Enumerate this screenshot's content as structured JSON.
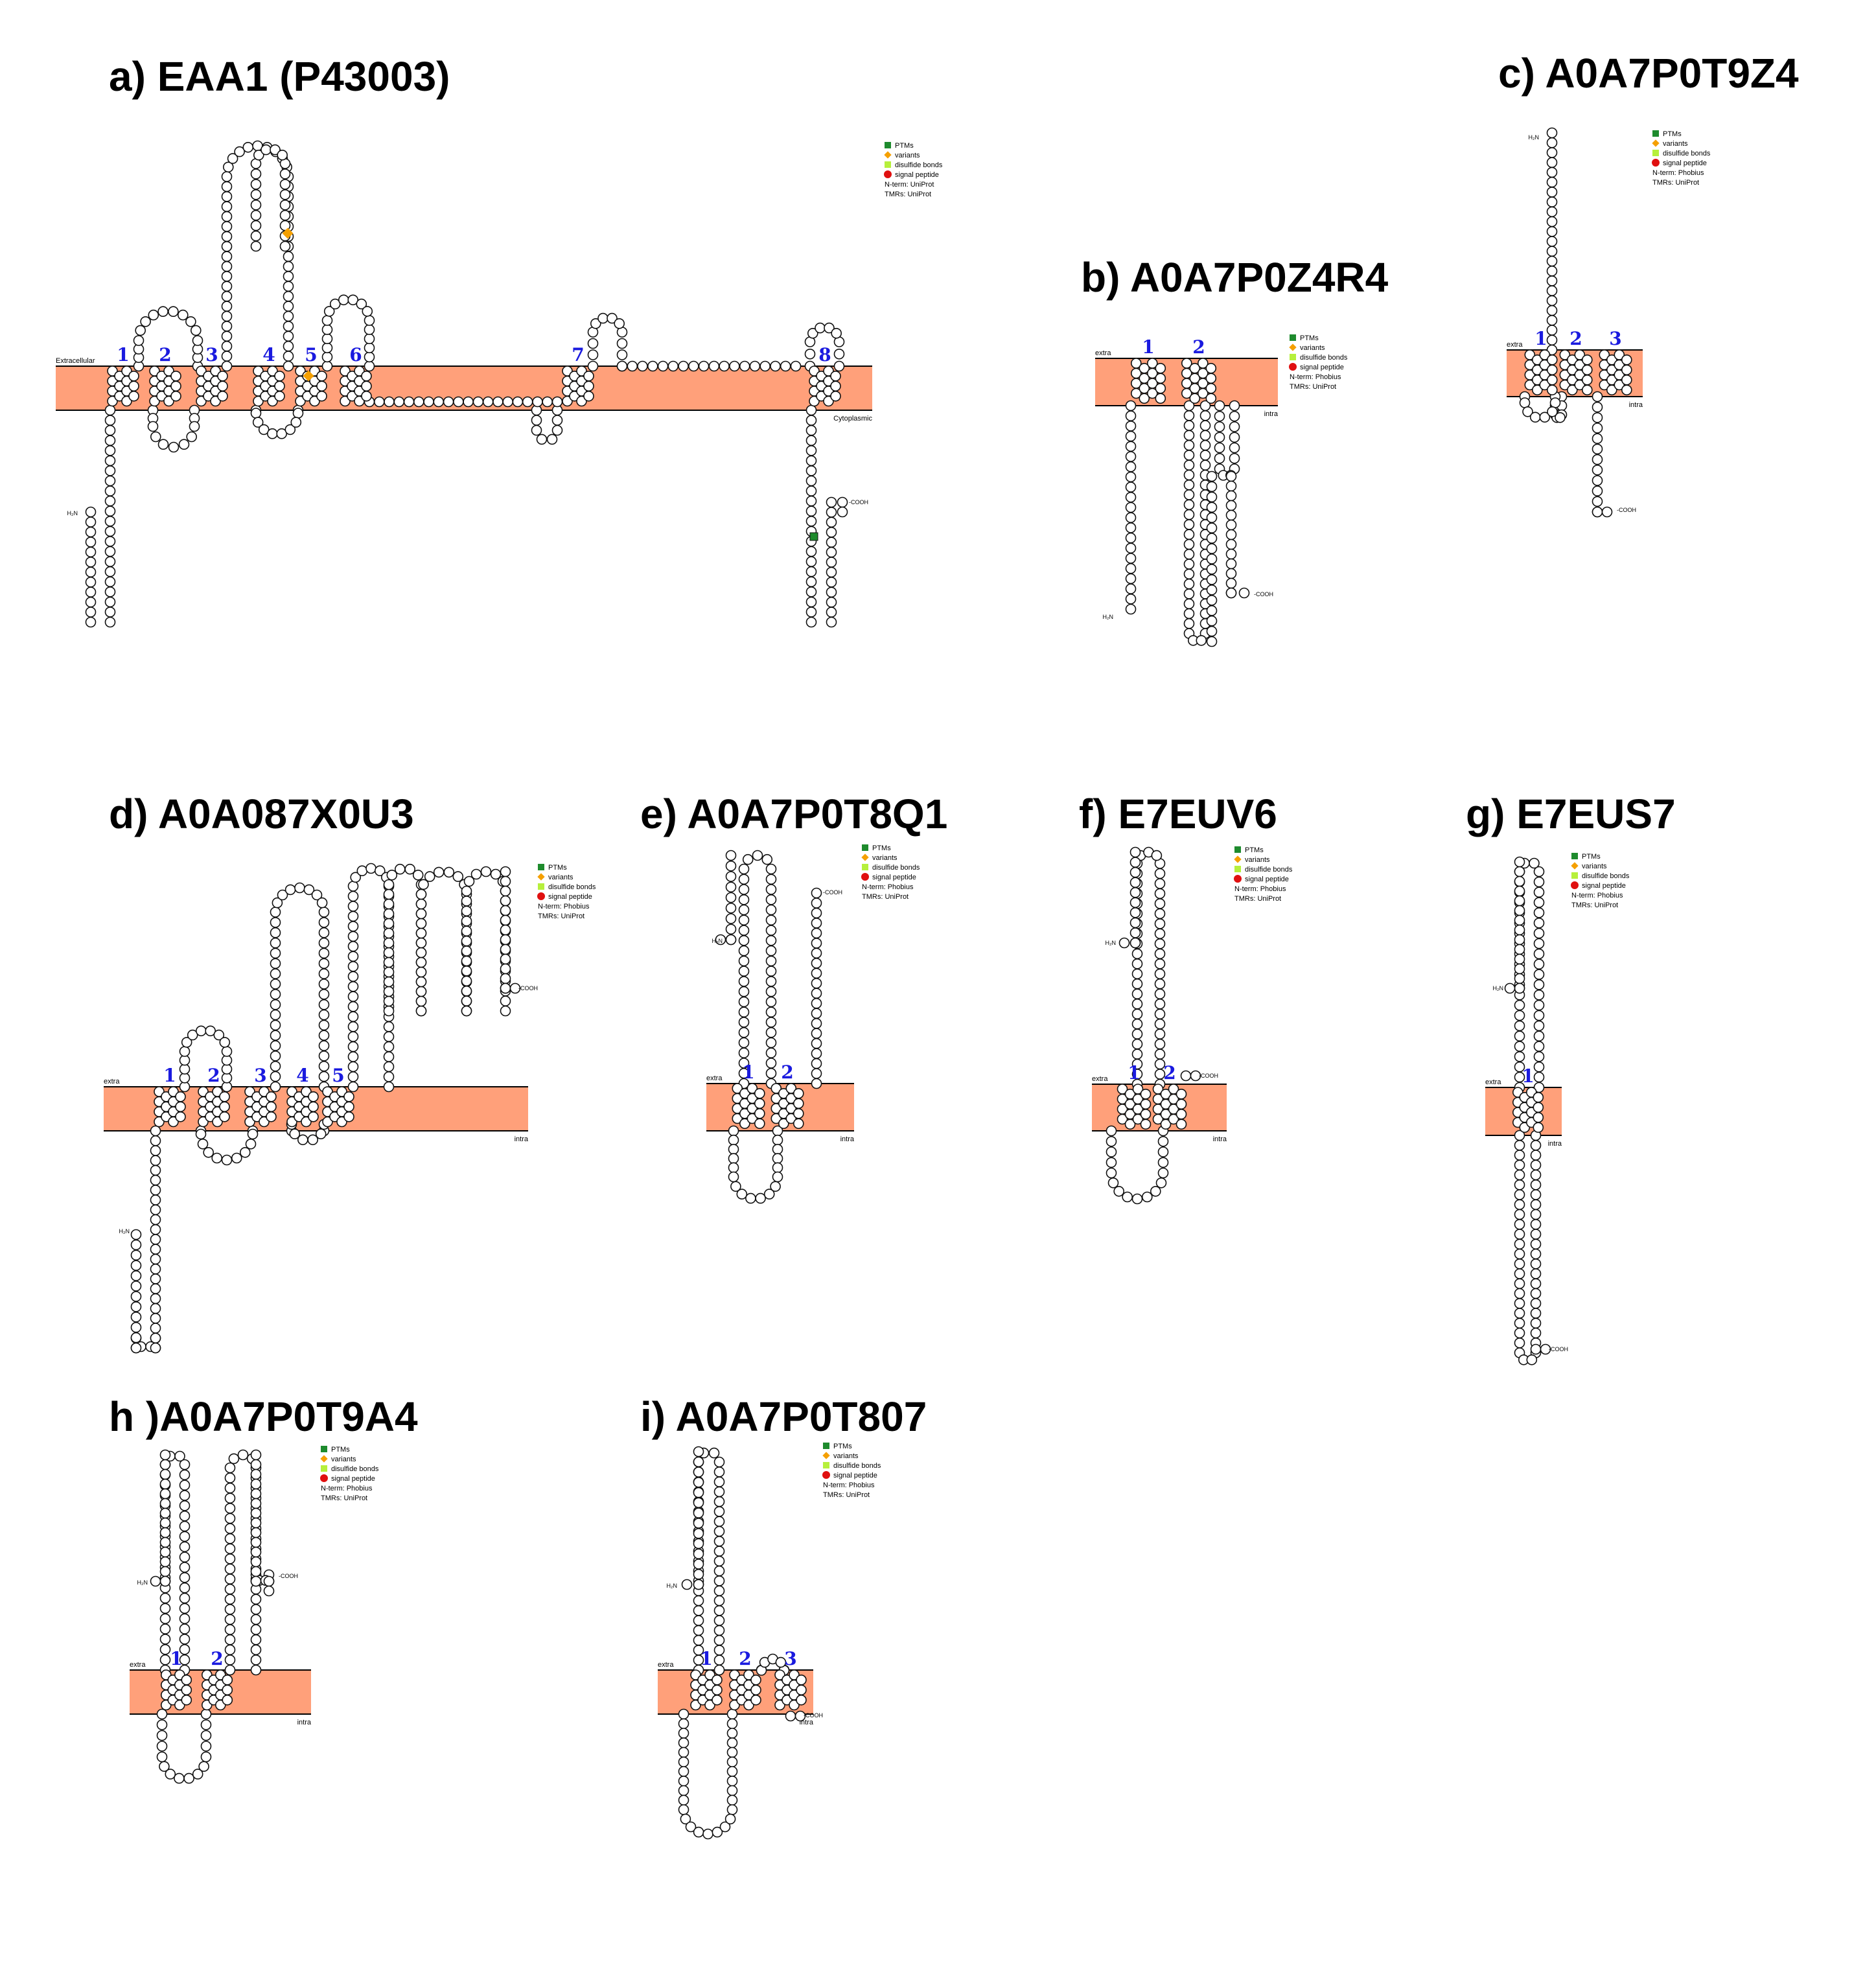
{
  "colors": {
    "membrane": "#ffa07a",
    "tm_number": "#1a1adf",
    "ptm": "#1e8b2d",
    "variant": "#f5a000",
    "disulfide": "#b6f03c",
    "signal": "#e01010"
  },
  "panels": [
    {
      "id": "a",
      "title": "a) EAA1 (P43003)",
      "outside_label": "Extracellular",
      "inside_label": "Cytoplasmic",
      "nterm": "H₂N",
      "cterm": "-COOH",
      "helices": [
        "1",
        "2",
        "3",
        "4",
        "5",
        "6",
        "7",
        "8"
      ],
      "legend": [
        "PTMs",
        "variants",
        "disulfide bonds",
        "signal peptide",
        "N-term: UniProt",
        "TMRs: UniProt"
      ]
    },
    {
      "id": "b",
      "title": "b) A0A7P0Z4R4",
      "outside_label": "extra",
      "inside_label": "intra",
      "nterm": "H₂N",
      "cterm": "-COOH",
      "helices": [
        "1",
        "2"
      ],
      "legend": [
        "PTMs",
        "variants",
        "disulfide bonds",
        "signal peptide",
        "N-term: Phobius",
        "TMRs: UniProt"
      ]
    },
    {
      "id": "c",
      "title": "c) A0A7P0T9Z4",
      "outside_label": "extra",
      "inside_label": "intra",
      "nterm": "H₂N",
      "cterm": "-COOH",
      "helices": [
        "1",
        "2",
        "3"
      ],
      "legend": [
        "PTMs",
        "variants",
        "disulfide bonds",
        "signal peptide",
        "N-term: Phobius",
        "TMRs: UniProt"
      ]
    },
    {
      "id": "d",
      "title": "d) A0A087X0U3",
      "outside_label": "extra",
      "inside_label": "intra",
      "nterm": "H₂N",
      "cterm": "-COOH",
      "helices": [
        "1",
        "2",
        "3",
        "4",
        "5"
      ],
      "legend": [
        "PTMs",
        "variants",
        "disulfide bonds",
        "signal peptide",
        "N-term: Phobius",
        "TMRs: UniProt"
      ]
    },
    {
      "id": "e",
      "title": "e) A0A7P0T8Q1",
      "outside_label": "extra",
      "inside_label": "intra",
      "nterm": "H₂N",
      "cterm": "-COOH",
      "helices": [
        "1",
        "2"
      ],
      "legend": [
        "PTMs",
        "variants",
        "disulfide bonds",
        "signal peptide",
        "N-term: Phobius",
        "TMRs: UniProt"
      ]
    },
    {
      "id": "f",
      "title": "f) E7EUV6",
      "outside_label": "extra",
      "inside_label": "intra",
      "nterm": "H₂N",
      "cterm": "-COOH",
      "helices": [
        "1",
        "2"
      ],
      "legend": [
        "PTMs",
        "variants",
        "disulfide bonds",
        "signal peptide",
        "N-term: Phobius",
        "TMRs: UniProt"
      ]
    },
    {
      "id": "g",
      "title": "g) E7EUS7",
      "outside_label": "extra",
      "inside_label": "intra",
      "nterm": "H₂N",
      "cterm": "-COOH",
      "helices": [
        "1"
      ],
      "legend": [
        "PTMs",
        "variants",
        "disulfide bonds",
        "signal peptide",
        "N-term: Phobius",
        "TMRs: UniProt"
      ]
    },
    {
      "id": "h",
      "title": "h )A0A7P0T9A4",
      "outside_label": "extra",
      "inside_label": "intra",
      "nterm": "H₂N",
      "cterm": "-COOH",
      "helices": [
        "1",
        "2"
      ],
      "legend": [
        "PTMs",
        "variants",
        "disulfide bonds",
        "signal peptide",
        "N-term: Phobius",
        "TMRs: UniProt"
      ]
    },
    {
      "id": "i",
      "title": "i) A0A7P0T807",
      "outside_label": "extra",
      "inside_label": "intra",
      "nterm": "H₂N",
      "cterm": "-COOH",
      "helices": [
        "1",
        "2",
        "3"
      ],
      "legend": [
        "PTMs",
        "variants",
        "disulfide bonds",
        "signal peptide",
        "N-term: Phobius",
        "TMRs: UniProt"
      ]
    }
  ]
}
